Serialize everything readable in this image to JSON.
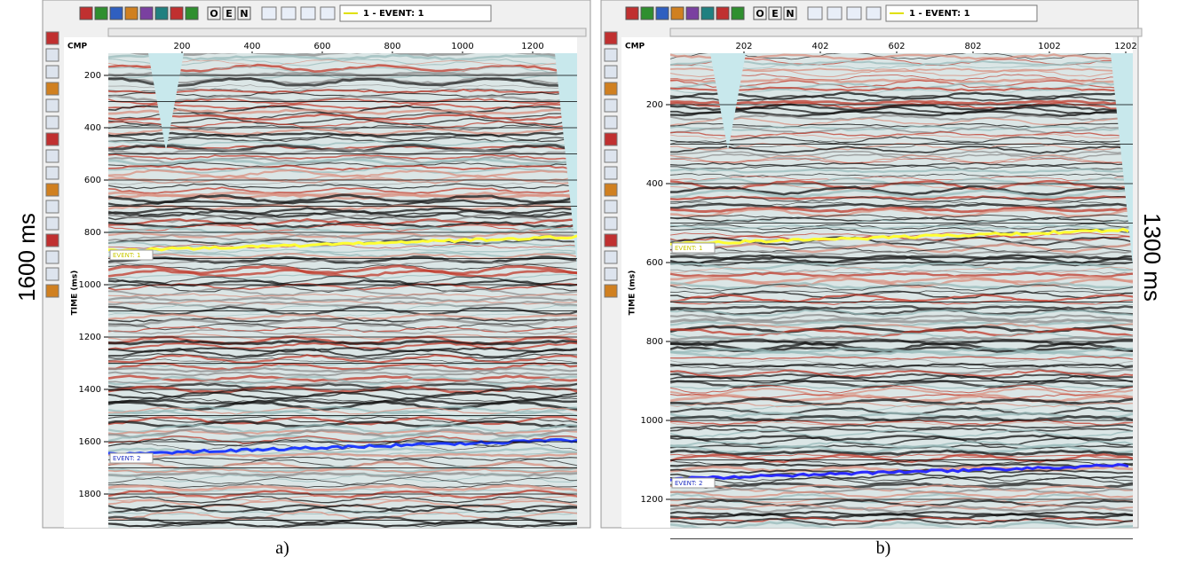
{
  "toolbar_letters": [
    "O",
    "E",
    "N"
  ],
  "panels": [
    {
      "toolbar_event": "1 - EVENT: 1",
      "x_axis_label": "CMP",
      "x_ticks": [
        200,
        400,
        600,
        800,
        1000,
        1200
      ],
      "y_axis_label": "TIME (ms)",
      "y_ticks": [
        200,
        400,
        600,
        800,
        1000,
        1200,
        1400,
        1600,
        1800
      ],
      "events": [
        "EVENT: 1",
        "EVENT: 2"
      ],
      "side_label": "1600 ms",
      "caption": "a)"
    },
    {
      "toolbar_event": "1 - EVENT: 1",
      "x_axis_label": "CMP",
      "x_ticks": [
        202,
        402,
        602,
        802,
        1002,
        1202
      ],
      "y_axis_label": "TIME (ms)",
      "y_ticks": [
        200,
        400,
        600,
        800,
        1000,
        1200
      ],
      "events": [
        "EVENT: 1",
        "EVENT: 2"
      ],
      "side_label": "1300 ms",
      "caption": "b)"
    }
  ]
}
